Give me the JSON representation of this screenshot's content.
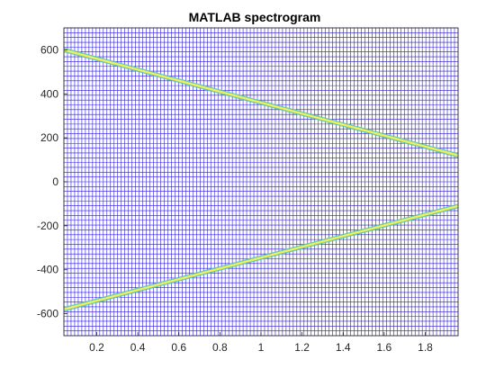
{
  "chart_data": {
    "type": "heatmap",
    "title": "MATLAB spectrogram",
    "xlabel": "",
    "ylabel": "",
    "xlim": [
      0.04,
      1.96
    ],
    "ylim": [
      -700,
      700
    ],
    "xticks": [
      0.2,
      0.4,
      0.6,
      0.8,
      1,
      1.2,
      1.4,
      1.6,
      1.8
    ],
    "xtick_labels": [
      "0.2",
      "0.4",
      "0.6",
      "0.8",
      "1",
      "1.2",
      "1.4",
      "1.6",
      "1.8"
    ],
    "yticks": [
      -600,
      -400,
      -200,
      0,
      200,
      400,
      600
    ],
    "ytick_labels": [
      "-600",
      "-400",
      "-200",
      "0",
      "200",
      "400",
      "600"
    ],
    "grid": true,
    "mesh_color": "#2a1ad8",
    "background_color": "#ffffff",
    "series": [
      {
        "x": [
          0.04,
          1.96
        ],
        "y": [
          600,
          120
        ]
      },
      {
        "x": [
          0.04,
          1.96
        ],
        "y": [
          -580,
          -110
        ]
      }
    ],
    "ridge_colors": [
      "#58c8a8",
      "#f5f05a"
    ]
  }
}
